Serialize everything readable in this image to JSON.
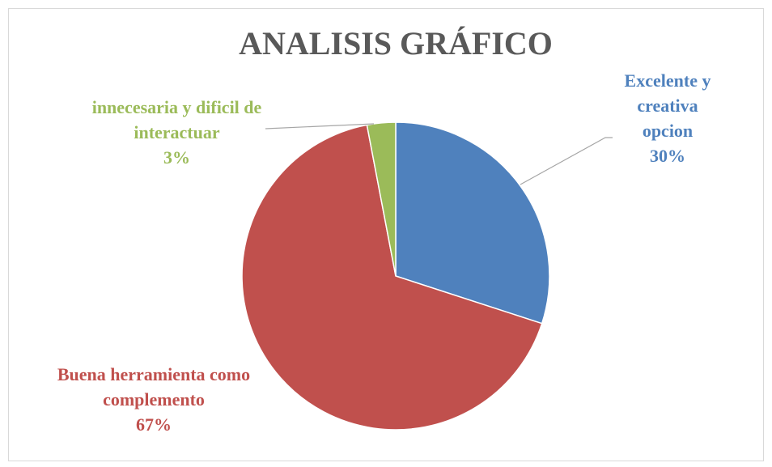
{
  "chart_data": {
    "type": "pie",
    "title": "ANALISIS  GRÁFICO",
    "categories": [
      "Excelente y creativa opcion",
      "Buena herramienta como complemento",
      "innecesaria y dificil de interactuar"
    ],
    "values": [
      30,
      67,
      3
    ],
    "value_labels": [
      "30%",
      "67%",
      "3%"
    ],
    "colors": [
      "#4f81bd",
      "#c0504d",
      "#9bbb59"
    ]
  }
}
